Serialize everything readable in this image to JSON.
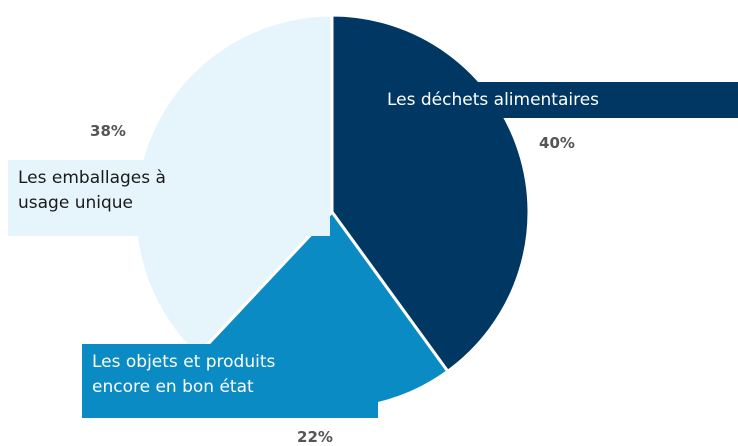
{
  "chart_data": {
    "type": "pie",
    "categories": [
      "Les déchets alimentaires",
      "Les objets et produits encore en bon état",
      "Les emballages à usage unique"
    ],
    "values": [
      40,
      22,
      38
    ],
    "value_labels": [
      "40%",
      "22%",
      "38%"
    ],
    "colors": [
      "#003863",
      "#0a8bc4",
      "#e6f4fc"
    ],
    "label_text_colors": [
      "#ffffff",
      "#ffffff",
      "#1a1a1a"
    ]
  }
}
